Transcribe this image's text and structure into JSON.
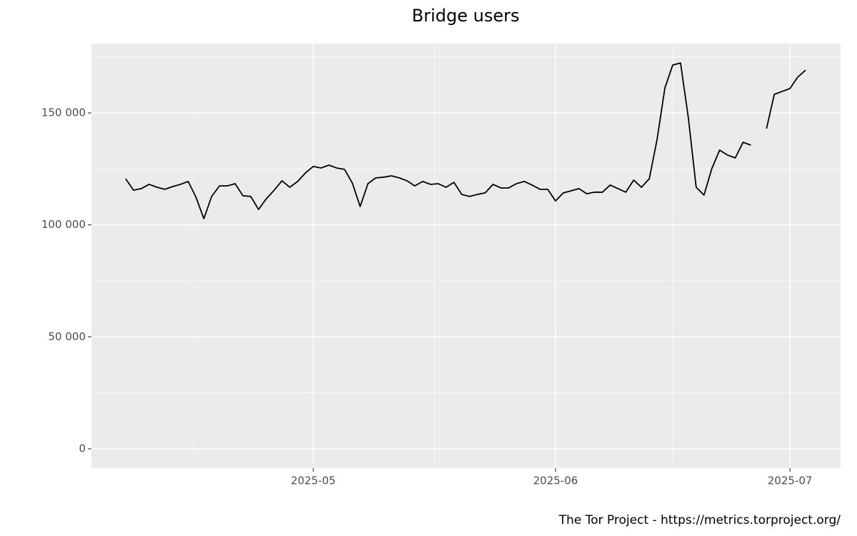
{
  "chart_data": {
    "type": "line",
    "title": "Bridge users",
    "caption": "The Tor Project - https://metrics.torproject.org/",
    "categories": [
      null,
      null,
      null,
      null,
      null,
      null,
      null,
      null,
      null,
      null,
      null,
      null,
      null,
      null,
      null,
      null,
      null,
      null,
      null,
      null,
      null,
      null,
      null,
      null,
      "2025-05",
      null,
      null,
      null,
      null,
      null,
      null,
      null,
      null,
      null,
      null,
      null,
      null,
      null,
      null,
      null,
      null,
      null,
      null,
      null,
      null,
      null,
      null,
      null,
      null,
      null,
      null,
      null,
      null,
      null,
      null,
      "2025-06",
      null,
      null,
      null,
      null,
      null,
      null,
      null,
      null,
      null,
      null,
      null,
      null,
      null,
      null,
      null,
      null,
      null,
      null,
      null,
      null,
      null,
      null,
      null,
      null,
      null,
      null,
      null,
      null,
      null,
      "2025-07",
      null,
      null
    ],
    "series": [
      {
        "name": "Bridge users",
        "color": "#000000",
        "values": [
          120600,
          115500,
          116200,
          118100,
          116800,
          115900,
          117100,
          118100,
          119400,
          112300,
          102800,
          112700,
          117400,
          117400,
          118400,
          113000,
          112700,
          106900,
          111700,
          115500,
          119700,
          116800,
          119400,
          123200,
          126100,
          125400,
          126700,
          125400,
          124800,
          118700,
          108200,
          118400,
          121000,
          121300,
          121900,
          121000,
          119700,
          117400,
          119400,
          118100,
          118400,
          116800,
          119000,
          113600,
          112700,
          113600,
          114300,
          118100,
          116500,
          116500,
          118400,
          119400,
          117800,
          115900,
          115900,
          110700,
          114300,
          115200,
          116200,
          113900,
          114600,
          114600,
          117800,
          116200,
          114600,
          120000,
          116800,
          120600,
          138200,
          161200,
          171400,
          172300,
          147800,
          116800,
          113300,
          125100,
          133400,
          131200,
          129900,
          136900,
          135600,
          null,
          143000,
          158300,
          159600,
          160900,
          166000,
          169100
        ]
      }
    ],
    "ylim": [
      -8620,
      180960
    ],
    "yticks": [
      {
        "value": 0,
        "label": "0"
      },
      {
        "value": 50000,
        "label": "50 000"
      },
      {
        "value": 100000,
        "label": "100 000"
      },
      {
        "value": 150000,
        "label": "150 000"
      }
    ],
    "grid": true
  }
}
